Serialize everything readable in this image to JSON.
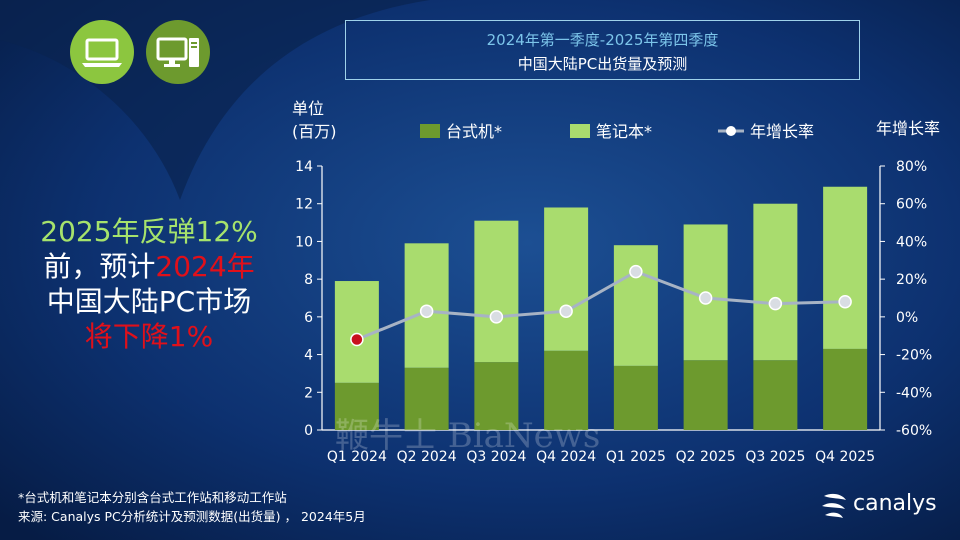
{
  "title": {
    "line1": "2024年第一季度-2025年第四季度",
    "line2": "中国大陆PC出货量及预测"
  },
  "headline": {
    "part1": "2025年反弹12%",
    "part2": "前，预计",
    "part3": "2024年",
    "part4": "中国大陆PC市场",
    "part5": "将下降1%"
  },
  "icons": {
    "laptop": "laptop-icon",
    "desktop": "desktop-icon"
  },
  "footnote": {
    "line1": "*台式机和笔记本分别含台式工作站和移动工作站",
    "line2": "来源: Canalys PC分析统计及预测数据(出货量) ， 2024年5月"
  },
  "logo": {
    "text": "canalys"
  },
  "watermark": "鞭牛士 BiaNews",
  "colors": {
    "background": "#0b2a5b",
    "desktop": "#6d9a2e",
    "notebook": "#a9dc6e",
    "growth_line": "#a7b3c4",
    "highlight_point": "#c8101e",
    "title_accent": "#7cc5ea"
  },
  "chart_data": {
    "type": "bar",
    "stacked": true,
    "categories": [
      "Q1 2024",
      "Q2 2024",
      "Q3 2024",
      "Q4 2024",
      "Q1 2025",
      "Q2 2025",
      "Q3 2025",
      "Q4 2025"
    ],
    "series": [
      {
        "name": "台式机*",
        "type": "bar",
        "axis": "left",
        "values": [
          2.5,
          3.3,
          3.6,
          4.2,
          3.4,
          3.7,
          3.7,
          4.3
        ]
      },
      {
        "name": "笔记本*",
        "type": "bar",
        "axis": "left",
        "values": [
          5.4,
          6.6,
          7.5,
          7.6,
          6.4,
          7.2,
          8.3,
          8.6
        ]
      },
      {
        "name": "年增长率",
        "type": "line",
        "axis": "right",
        "values": [
          -12,
          3,
          0,
          3,
          24,
          10,
          7,
          8
        ],
        "unit": "%"
      }
    ],
    "ylabel_line1": "单位",
    "ylabel_line2": "(百万)",
    "y2label": "年增长率",
    "ylim": [
      0,
      14
    ],
    "yticks": [
      "0",
      "2",
      "4",
      "6",
      "8",
      "10",
      "12",
      "14"
    ],
    "y2lim": [
      -60,
      80
    ],
    "y2ticks": [
      "-60%",
      "-40%",
      "-20%",
      "0%",
      "20%",
      "40%",
      "60%",
      "80%"
    ],
    "legend": [
      "台式机*",
      "笔记本*",
      "年增长率"
    ],
    "legend_position": "top",
    "grid": false,
    "highlighted_point_index": 0
  }
}
